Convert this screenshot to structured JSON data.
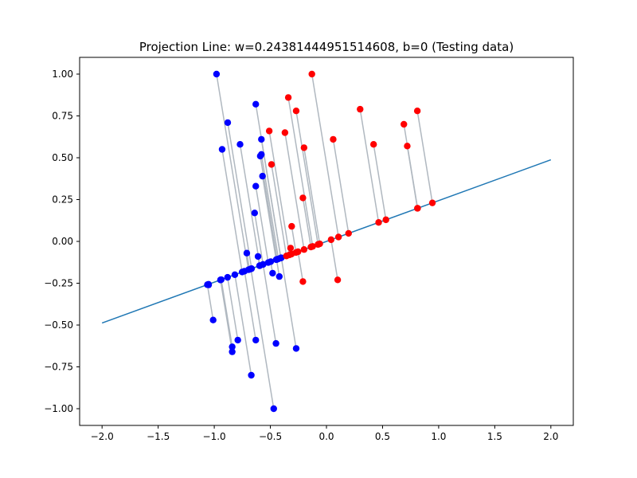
{
  "chart_data": {
    "type": "scatter",
    "title": "Projection Line: w=0.24381444951514608, b=0 (Testing data)",
    "xlabel": "",
    "ylabel": "",
    "xlim": [
      -2.2,
      2.2
    ],
    "ylim": [
      -1.1,
      1.1
    ],
    "grid": false,
    "legend": "none",
    "x_ticks": [
      -2.0,
      -1.5,
      -1.0,
      -0.5,
      0.0,
      0.5,
      1.0,
      1.5,
      2.0
    ],
    "x_tick_labels": [
      "−2.0",
      "−1.5",
      "−1.0",
      "−0.5",
      "0.0",
      "0.5",
      "1.0",
      "1.5",
      "2.0"
    ],
    "y_ticks": [
      -1.0,
      -0.75,
      -0.5,
      -0.25,
      0.0,
      0.25,
      0.5,
      0.75,
      1.0
    ],
    "y_tick_labels": [
      "−1.00",
      "−0.75",
      "−0.50",
      "−0.25",
      "0.00",
      "0.25",
      "0.50",
      "0.75",
      "1.00"
    ],
    "projection_line": {
      "w": 0.24381444951514608,
      "b": 0,
      "x_range": [
        -2.0,
        2.0
      ],
      "color": "#1f77b4"
    },
    "projection_segment_color": "#b0b8c0",
    "series": [
      {
        "color": "#0000ff",
        "points": [
          [
            -0.98,
            1.0
          ],
          [
            -0.88,
            0.71
          ],
          [
            -0.93,
            0.55
          ],
          [
            -0.77,
            0.58
          ],
          [
            -0.63,
            0.82
          ],
          [
            -0.58,
            0.61
          ],
          [
            -0.59,
            0.51
          ],
          [
            -0.58,
            0.52
          ],
          [
            -0.57,
            0.39
          ],
          [
            -0.63,
            0.33
          ],
          [
            -0.64,
            0.17
          ],
          [
            -0.61,
            -0.09
          ],
          [
            -0.71,
            -0.07
          ],
          [
            -0.48,
            -0.19
          ],
          [
            -0.42,
            -0.21
          ],
          [
            -1.05,
            -0.26
          ],
          [
            -1.01,
            -0.47
          ],
          [
            -0.84,
            -0.63
          ],
          [
            -0.84,
            -0.66
          ],
          [
            -0.79,
            -0.59
          ],
          [
            -0.63,
            -0.59
          ],
          [
            -0.45,
            -0.61
          ],
          [
            -0.27,
            -0.64
          ],
          [
            -0.67,
            -0.8
          ],
          [
            -0.47,
            -1.0
          ]
        ]
      },
      {
        "color": "#ff0000",
        "points": [
          [
            -0.13,
            1.0
          ],
          [
            -0.34,
            0.86
          ],
          [
            -0.27,
            0.78
          ],
          [
            -0.51,
            0.66
          ],
          [
            -0.37,
            0.65
          ],
          [
            -0.2,
            0.56
          ],
          [
            -0.49,
            0.46
          ],
          [
            -0.21,
            0.26
          ],
          [
            -0.31,
            0.09
          ],
          [
            -0.32,
            -0.04
          ],
          [
            -0.21,
            -0.24
          ],
          [
            0.06,
            0.61
          ],
          [
            0.3,
            0.79
          ],
          [
            0.42,
            0.58
          ],
          [
            0.69,
            0.7
          ],
          [
            0.72,
            0.57
          ],
          [
            0.81,
            0.78
          ],
          [
            0.1,
            -0.23
          ]
        ]
      }
    ]
  }
}
